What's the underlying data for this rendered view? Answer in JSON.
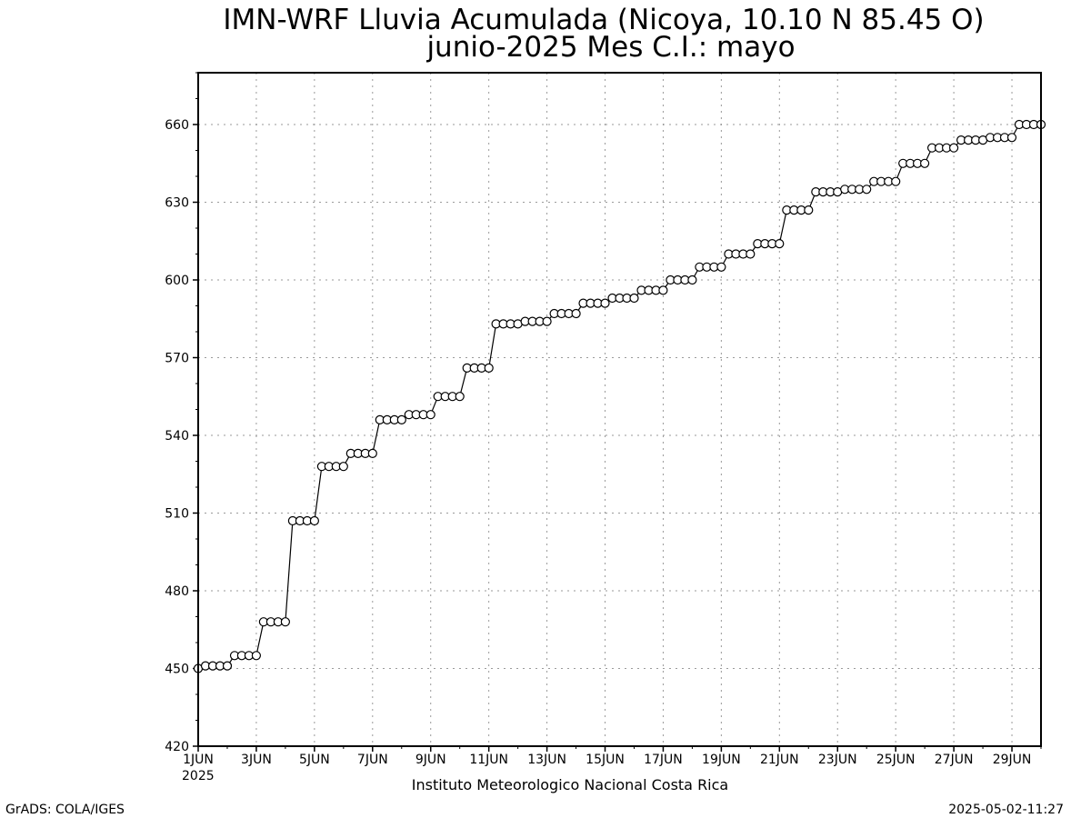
{
  "chart_data": {
    "type": "line",
    "title": "IMN-WRF  Lluvia Acumulada (Nicoya, 10.10  N 85.45  O)",
    "subtitle": "junio-2025 Mes C.I.: mayo",
    "xlabel": "",
    "ylabel": "",
    "xlim": [
      1,
      30
    ],
    "ylim": [
      420,
      680
    ],
    "y_ticks": [
      420,
      450,
      480,
      510,
      540,
      570,
      600,
      630,
      660
    ],
    "x_tick_labels": [
      "1JUN",
      "3JUN",
      "5JUN",
      "7JUN",
      "9JUN",
      "11JUN",
      "13JUN",
      "15JUN",
      "17JUN",
      "19JUN",
      "21JUN",
      "23JUN",
      "25JUN",
      "27JUN",
      "29JUN"
    ],
    "x_year_label": "2025",
    "grid": true,
    "marker": "open-circle",
    "series": [
      {
        "values": [
          450,
          451,
          451,
          451,
          451,
          455,
          455,
          455,
          455,
          468,
          468,
          468,
          468,
          507,
          507,
          507,
          507,
          528,
          528,
          528,
          528,
          533,
          533,
          533,
          533,
          546,
          546,
          546,
          546,
          548,
          548,
          548,
          548,
          555,
          555,
          555,
          555,
          566,
          566,
          566,
          566,
          583,
          583,
          583,
          583,
          584,
          584,
          584,
          584,
          587,
          587,
          587,
          587,
          591,
          591,
          591,
          591,
          593,
          593,
          593,
          593,
          596,
          596,
          596,
          596,
          600,
          600,
          600,
          600,
          605,
          605,
          605,
          605,
          610,
          610,
          610,
          610,
          614,
          614,
          614,
          614,
          627,
          627,
          627,
          627,
          634,
          634,
          634,
          634,
          635,
          635,
          635,
          635,
          638,
          638,
          638,
          638,
          645,
          645,
          645,
          645,
          651,
          651,
          651,
          651,
          654,
          654,
          654,
          654,
          655,
          655,
          655,
          655,
          660,
          660,
          660,
          660
        ]
      }
    ],
    "colors": {
      "line": "#000000",
      "marker_fill": "#ffffff",
      "grid": "#9a9a9a",
      "frame": "#000000"
    }
  },
  "footer": {
    "institution": "Instituto Meteorologico Nacional Costa Rica",
    "software": "GrADS: COLA/IGES",
    "timestamp": "2025-05-02-11:27"
  }
}
